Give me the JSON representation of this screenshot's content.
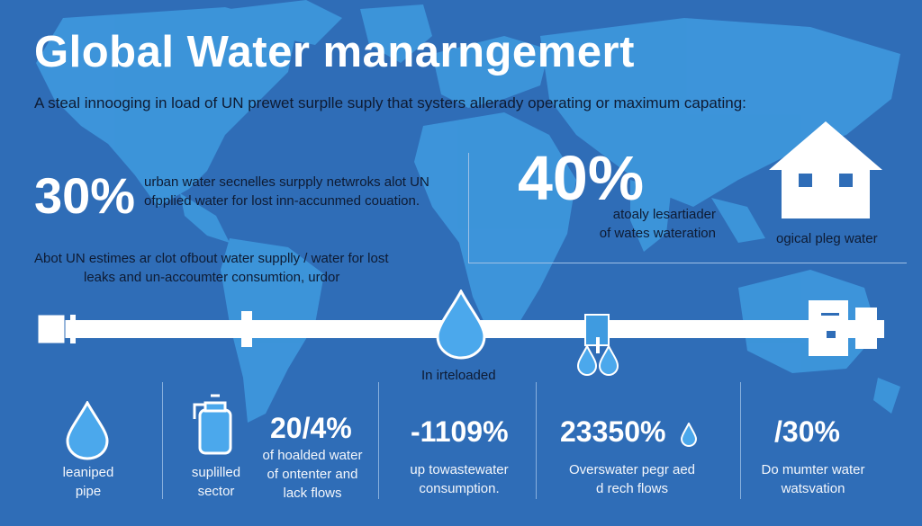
{
  "header": {
    "title": "Global Water manarngemert",
    "subtitle": "A steal innooging in load of UN prewet surplle suply that systers allerady operating or maximum capating:"
  },
  "stats_top": {
    "left": {
      "value": "30%",
      "line1": "urban water secnelles surpply netwroks alot UN",
      "line2": "ofpplied water for lost inn-accunmed couation."
    },
    "center": {
      "value": "40%",
      "line1": "atoaly lesartiader",
      "line2": "of wates wateration"
    },
    "house_caption": "ogical pleg water"
  },
  "note": {
    "line1": "Abot UN estimes ar clot ofbout water supplly / water for lost",
    "line2": "leaks and un-accoumter consumtion, urdor"
  },
  "pipeline": {
    "drop_caption": "In irteloaded"
  },
  "bottom": [
    {
      "icon": "water-drop-icon",
      "line1": "leaniped",
      "line2": "pipe"
    },
    {
      "icon": "water-jug-icon",
      "line1": "suplilled",
      "line2": "sector"
    },
    {
      "value": "20/4%",
      "line1": "of hoalded water",
      "line2": "of  ontenter and",
      "line3": "lack flows"
    },
    {
      "value": "-1109%",
      "line1": "up towastewater",
      "line2": "consumption."
    },
    {
      "value": "23350%",
      "line1": "Overswater pegr aed",
      "line2": "d rech flows"
    },
    {
      "value": "/30%",
      "line1": "Do mumter water",
      "line2": "watsvation"
    }
  ],
  "colors": {
    "background": "#2f6db7",
    "map": "#3f9be0",
    "drop": "#4ba8ec",
    "text_dark": "#0e1b33",
    "white": "#ffffff"
  }
}
